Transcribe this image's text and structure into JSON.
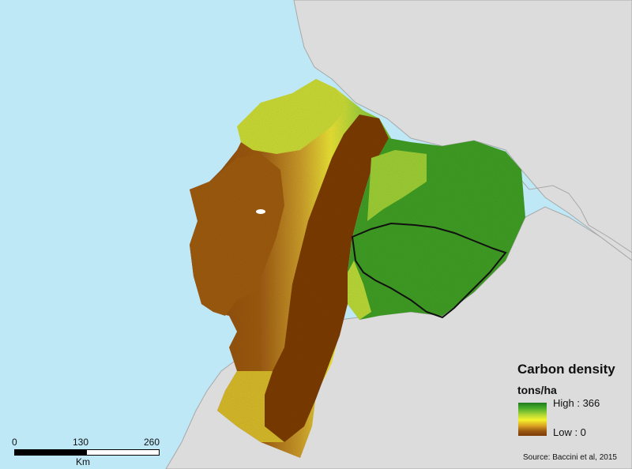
{
  "map": {
    "colors": {
      "ocean": "#bfe8f7",
      "land": "#dcdcdc",
      "high": "#1f7a1f",
      "mid_high": "#4fb02a",
      "mid": "#f3f32b",
      "low": "#7a3b06",
      "boundary": "#111111"
    }
  },
  "legend": {
    "title": "Carbon density",
    "unit": "tons/ha",
    "high_label": "High : 366",
    "low_label": "Low : 0"
  },
  "scale": {
    "ticks": [
      "0",
      "130",
      "260"
    ],
    "unit": "Km"
  },
  "source": "Source: Baccini et al, 2015"
}
